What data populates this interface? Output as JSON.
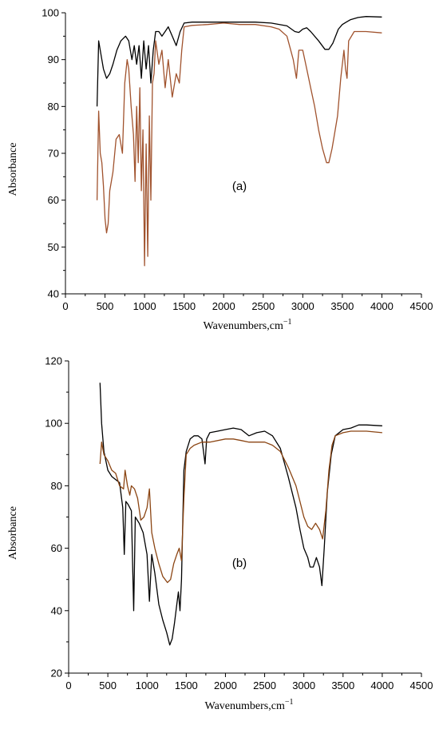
{
  "chart_data": [
    {
      "type": "line",
      "panel_label": "(a)",
      "xlabel": "Wavenumbers,cm",
      "xlabel_sup": "−1",
      "ylabel": "Absorbance",
      "xlim": [
        0,
        4500
      ],
      "ylim": [
        40,
        100
      ],
      "x_ticks": [
        0,
        500,
        1000,
        1500,
        2000,
        2500,
        3000,
        3500,
        4000,
        4500
      ],
      "y_ticks": [
        40,
        50,
        60,
        70,
        80,
        90,
        100
      ],
      "series": [
        {
          "color": "#000000",
          "points": [
            [
              400,
              80
            ],
            [
              420,
              94
            ],
            [
              450,
              91
            ],
            [
              480,
              88
            ],
            [
              520,
              86
            ],
            [
              560,
              87
            ],
            [
              600,
              89
            ],
            [
              650,
              92
            ],
            [
              700,
              94
            ],
            [
              760,
              95
            ],
            [
              800,
              94
            ],
            [
              840,
              90
            ],
            [
              870,
              93
            ],
            [
              900,
              89
            ],
            [
              930,
              93
            ],
            [
              960,
              86
            ],
            [
              990,
              94
            ],
            [
              1020,
              88
            ],
            [
              1050,
              93
            ],
            [
              1080,
              85
            ],
            [
              1110,
              92
            ],
            [
              1140,
              96
            ],
            [
              1180,
              96
            ],
            [
              1220,
              95
            ],
            [
              1260,
              96
            ],
            [
              1300,
              97
            ],
            [
              1350,
              95
            ],
            [
              1400,
              93
            ],
            [
              1450,
              96
            ],
            [
              1500,
              97.8
            ],
            [
              1600,
              98
            ],
            [
              1800,
              98
            ],
            [
              2000,
              98
            ],
            [
              2200,
              98
            ],
            [
              2400,
              98
            ],
            [
              2600,
              97.8
            ],
            [
              2800,
              97.2
            ],
            [
              2900,
              96
            ],
            [
              2950,
              95.8
            ],
            [
              3000,
              96.5
            ],
            [
              3050,
              96.8
            ],
            [
              3100,
              96
            ],
            [
              3200,
              94
            ],
            [
              3280,
              92.2
            ],
            [
              3330,
              92.2
            ],
            [
              3380,
              93.5
            ],
            [
              3450,
              96.5
            ],
            [
              3500,
              97.5
            ],
            [
              3550,
              98
            ],
            [
              3600,
              98.5
            ],
            [
              3700,
              99
            ],
            [
              3800,
              99.2
            ],
            [
              4000,
              99.1
            ]
          ]
        },
        {
          "color": "#a0522d",
          "points": [
            [
              400,
              60
            ],
            [
              420,
              79
            ],
            [
              440,
              70
            ],
            [
              460,
              68
            ],
            [
              480,
              63
            ],
            [
              500,
              56
            ],
            [
              520,
              53
            ],
            [
              540,
              55
            ],
            [
              560,
              62
            ],
            [
              600,
              66
            ],
            [
              640,
              73
            ],
            [
              680,
              74
            ],
            [
              720,
              70
            ],
            [
              750,
              85
            ],
            [
              780,
              90
            ],
            [
              800,
              88
            ],
            [
              830,
              80
            ],
            [
              860,
              74
            ],
            [
              880,
              64
            ],
            [
              900,
              80
            ],
            [
              920,
              68
            ],
            [
              940,
              84
            ],
            [
              960,
              62
            ],
            [
              980,
              75
            ],
            [
              1000,
              46
            ],
            [
              1020,
              72
            ],
            [
              1040,
              48
            ],
            [
              1060,
              78
            ],
            [
              1080,
              60
            ],
            [
              1100,
              85
            ],
            [
              1120,
              87
            ],
            [
              1140,
              94
            ],
            [
              1180,
              89
            ],
            [
              1220,
              92
            ],
            [
              1260,
              84
            ],
            [
              1300,
              90
            ],
            [
              1350,
              82
            ],
            [
              1400,
              87
            ],
            [
              1440,
              85
            ],
            [
              1470,
              92
            ],
            [
              1500,
              97
            ],
            [
              1600,
              97.3
            ],
            [
              1800,
              97.5
            ],
            [
              2000,
              97.8
            ],
            [
              2200,
              97.5
            ],
            [
              2400,
              97.5
            ],
            [
              2600,
              97
            ],
            [
              2700,
              96.5
            ],
            [
              2800,
              95
            ],
            [
              2880,
              90
            ],
            [
              2920,
              86
            ],
            [
              2950,
              92
            ],
            [
              3000,
              92
            ],
            [
              3050,
              88
            ],
            [
              3100,
              84
            ],
            [
              3150,
              80
            ],
            [
              3200,
              75
            ],
            [
              3250,
              71
            ],
            [
              3300,
              68
            ],
            [
              3330,
              68
            ],
            [
              3370,
              71
            ],
            [
              3400,
              74
            ],
            [
              3440,
              78
            ],
            [
              3480,
              86
            ],
            [
              3520,
              92
            ],
            [
              3540,
              88
            ],
            [
              3560,
              86
            ],
            [
              3580,
              94
            ],
            [
              3650,
              96
            ],
            [
              3800,
              96
            ],
            [
              4000,
              95.7
            ]
          ]
        }
      ]
    },
    {
      "type": "line",
      "panel_label": "(b)",
      "xlabel": "Wavenumbers,cm",
      "xlabel_sup": "−1",
      "ylabel": "Absorbance",
      "xlim": [
        0,
        4500
      ],
      "ylim": [
        20,
        120
      ],
      "x_ticks": [
        0,
        500,
        1000,
        1500,
        2000,
        2500,
        3000,
        3500,
        4000,
        4500
      ],
      "y_ticks": [
        20,
        40,
        60,
        80,
        100,
        120
      ],
      "series": [
        {
          "color": "#000000",
          "points": [
            [
              400,
              113
            ],
            [
              420,
              100
            ],
            [
              450,
              91
            ],
            [
              500,
              85
            ],
            [
              550,
              83
            ],
            [
              600,
              82
            ],
            [
              650,
              81
            ],
            [
              690,
              73
            ],
            [
              710,
              58
            ],
            [
              730,
              75
            ],
            [
              760,
              74
            ],
            [
              800,
              72
            ],
            [
              830,
              40
            ],
            [
              850,
              70
            ],
            [
              900,
              68
            ],
            [
              950,
              65
            ],
            [
              1000,
              58
            ],
            [
              1030,
              43
            ],
            [
              1060,
              58
            ],
            [
              1100,
              52
            ],
            [
              1150,
              42
            ],
            [
              1200,
              37
            ],
            [
              1250,
              33
            ],
            [
              1290,
              29
            ],
            [
              1320,
              31
            ],
            [
              1350,
              36
            ],
            [
              1380,
              42
            ],
            [
              1400,
              46
            ],
            [
              1420,
              40
            ],
            [
              1440,
              50
            ],
            [
              1470,
              85
            ],
            [
              1500,
              91
            ],
            [
              1550,
              95
            ],
            [
              1600,
              96
            ],
            [
              1650,
              96
            ],
            [
              1700,
              95
            ],
            [
              1740,
              87
            ],
            [
              1760,
              95
            ],
            [
              1800,
              97
            ],
            [
              1900,
              97.5
            ],
            [
              2000,
              98
            ],
            [
              2100,
              98.5
            ],
            [
              2200,
              98
            ],
            [
              2300,
              96
            ],
            [
              2400,
              97
            ],
            [
              2500,
              97.5
            ],
            [
              2600,
              96
            ],
            [
              2700,
              92
            ],
            [
              2800,
              83
            ],
            [
              2900,
              73
            ],
            [
              2950,
              66
            ],
            [
              3000,
              60
            ],
            [
              3050,
              57
            ],
            [
              3080,
              54
            ],
            [
              3120,
              54
            ],
            [
              3160,
              57
            ],
            [
              3200,
              54
            ],
            [
              3230,
              48
            ],
            [
              3260,
              60
            ],
            [
              3300,
              78
            ],
            [
              3350,
              90
            ],
            [
              3400,
              96
            ],
            [
              3450,
              97
            ],
            [
              3500,
              98
            ],
            [
              3600,
              98.5
            ],
            [
              3700,
              99.5
            ],
            [
              3800,
              99.5
            ],
            [
              4000,
              99.2
            ]
          ]
        },
        {
          "color": "#8b4513",
          "points": [
            [
              400,
              87
            ],
            [
              420,
              94
            ],
            [
              450,
              90
            ],
            [
              500,
              88
            ],
            [
              550,
              85
            ],
            [
              600,
              84
            ],
            [
              650,
              80
            ],
            [
              700,
              79
            ],
            [
              720,
              85
            ],
            [
              750,
              80
            ],
            [
              780,
              77
            ],
            [
              800,
              80
            ],
            [
              840,
              79
            ],
            [
              880,
              76
            ],
            [
              920,
              69
            ],
            [
              960,
              70
            ],
            [
              1000,
              73
            ],
            [
              1030,
              79
            ],
            [
              1060,
              65
            ],
            [
              1100,
              60
            ],
            [
              1150,
              55
            ],
            [
              1200,
              51
            ],
            [
              1260,
              49
            ],
            [
              1300,
              50
            ],
            [
              1340,
              55
            ],
            [
              1380,
              58
            ],
            [
              1410,
              60
            ],
            [
              1440,
              56
            ],
            [
              1470,
              76
            ],
            [
              1500,
              90
            ],
            [
              1550,
              92
            ],
            [
              1600,
              93
            ],
            [
              1700,
              94
            ],
            [
              1800,
              94
            ],
            [
              2000,
              95
            ],
            [
              2100,
              95
            ],
            [
              2200,
              94.5
            ],
            [
              2300,
              94
            ],
            [
              2400,
              94
            ],
            [
              2500,
              94
            ],
            [
              2600,
              93
            ],
            [
              2700,
              91
            ],
            [
              2800,
              86
            ],
            [
              2900,
              80
            ],
            [
              2950,
              75
            ],
            [
              3000,
              70
            ],
            [
              3050,
              67
            ],
            [
              3100,
              66
            ],
            [
              3150,
              68
            ],
            [
              3200,
              66
            ],
            [
              3240,
              63
            ],
            [
              3280,
              72
            ],
            [
              3320,
              85
            ],
            [
              3360,
              93
            ],
            [
              3400,
              96
            ],
            [
              3500,
              97
            ],
            [
              3600,
              97.5
            ],
            [
              3800,
              97.5
            ],
            [
              4000,
              97
            ]
          ]
        }
      ]
    }
  ]
}
